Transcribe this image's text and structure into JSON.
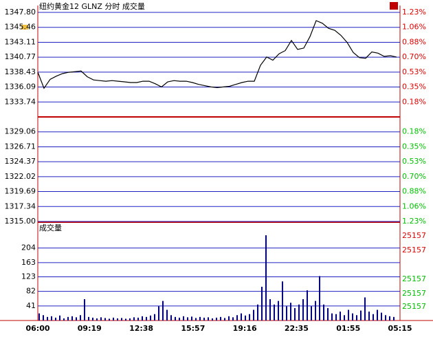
{
  "chart_data": [
    {
      "type": "line",
      "title": "纽约黄金12 GLNZ 分时 成交量",
      "color": "#000000",
      "ylim": [
        1315,
        1347.8
      ],
      "yticks": [
        {
          "value": 1347.8,
          "label": "1347.80"
        },
        1345.46,
        1343.11,
        1340.77,
        1338.43,
        1336.09,
        1333.74,
        1329.06,
        1326.71,
        1324.37,
        1322.02,
        1319.69,
        1317.34,
        {
          "value": 1315,
          "label": "1315.00"
        }
      ],
      "right_labels": [
        "1.23%",
        "1.06%",
        "0.88%",
        "0.70%",
        "0.53%",
        "0.35%",
        "0.18%",
        "0.18%",
        "0.35%",
        "0.53%",
        "0.70%",
        "0.88%",
        "1.06%",
        "1.23%"
      ],
      "values": [
        1338.41,
        1335.9,
        1337.3,
        1337.8,
        1338.2,
        1338.4,
        1338.5,
        1338.6,
        1337.7,
        1337.2,
        1337.1,
        1337.0,
        1337.1,
        1337.0,
        1336.9,
        1336.8,
        1336.8,
        1337.0,
        1337.0,
        1336.6,
        1336.1,
        1336.9,
        1337.1,
        1337.0,
        1337.0,
        1336.8,
        1336.5,
        1336.3,
        1336.1,
        1336.0,
        1336.1,
        1336.2,
        1336.5,
        1336.8,
        1337.0,
        1337.0,
        1339.5,
        1340.8,
        1340.3,
        1341.3,
        1341.8,
        1343.4,
        1342.0,
        1342.2,
        1344.0,
        1346.5,
        1346.1,
        1345.3,
        1345.0,
        1344.2,
        1343.1,
        1341.5,
        1340.7,
        1340.6,
        1341.6,
        1341.4,
        1340.9,
        1341.0,
        1340.8
      ]
    },
    {
      "type": "bar",
      "title": "成交量",
      "color": "#000080",
      "ylim": [
        0,
        275
      ],
      "yticks": [
        41,
        82,
        123,
        163,
        204
      ],
      "right_labels": [
        "25157",
        "25157",
        "25157",
        "25157",
        "25157"
      ],
      "time_labels": [
        "06:00",
        "09:19",
        "12:38",
        "15:57",
        "19:16",
        "22:35",
        "01:55",
        "05:15"
      ],
      "values": [
        20,
        15,
        10,
        12,
        8,
        14,
        6,
        10,
        12,
        9,
        15,
        60,
        10,
        8,
        6,
        9,
        7,
        5,
        8,
        6,
        7,
        5,
        6,
        9,
        8,
        12,
        10,
        14,
        18,
        40,
        55,
        30,
        15,
        10,
        8,
        12,
        9,
        11,
        7,
        10,
        8,
        9,
        6,
        8,
        10,
        7,
        12,
        9,
        15,
        20,
        14,
        18,
        30,
        45,
        95,
        240,
        60,
        45,
        55,
        110,
        40,
        50,
        35,
        45,
        60,
        85,
        40,
        55,
        125,
        45,
        35,
        20,
        18,
        25,
        15,
        30,
        20,
        15,
        28,
        65,
        25,
        18,
        30,
        22,
        15,
        12,
        10
      ]
    }
  ]
}
